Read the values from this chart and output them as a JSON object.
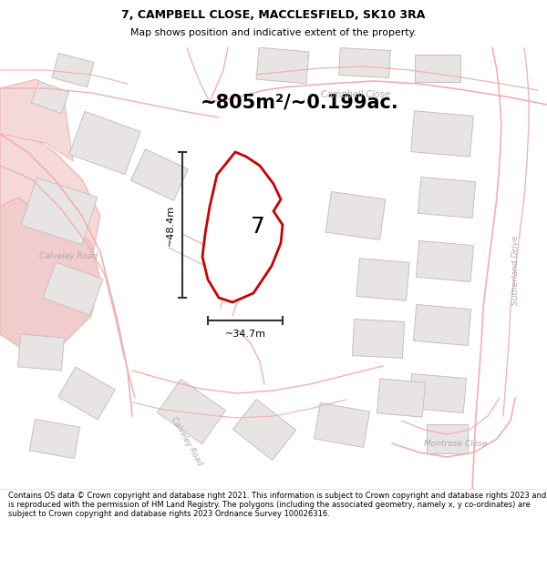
{
  "title": "7, CAMPBELL CLOSE, MACCLESFIELD, SK10 3RA",
  "subtitle": "Map shows position and indicative extent of the property.",
  "area_label": "~805m²/~0.199ac.",
  "plot_number": "7",
  "width_label": "~34.7m",
  "height_label": "~48.4m",
  "footer": "Contains OS data © Crown copyright and database right 2021. This information is subject to Crown copyright and database rights 2023 and is reproduced with the permission of HM Land Registry. The polygons (including the associated geometry, namely x, y co-ordinates) are subject to Crown copyright and database rights 2023 Ordnance Survey 100026316.",
  "map_bg": "#faf7f7",
  "plot_color": "#cc0000",
  "plot_fill": "#ffffff",
  "road_stroke": "#f0b0b0",
  "road_fill": "#f5c8c8",
  "building_stroke": "#c8c0c0",
  "building_fill": "#e8e4e4",
  "street_label_color": "#aaaaaa",
  "dim_color": "#333333",
  "pink_fill": "#f5d0d0"
}
